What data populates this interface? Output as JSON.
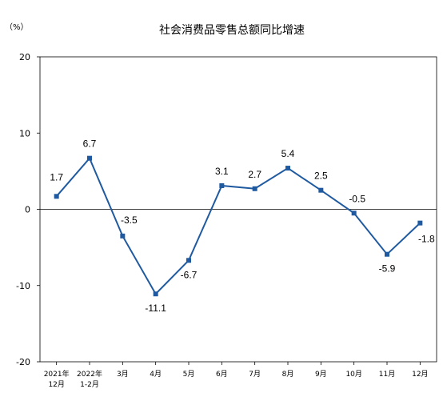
{
  "chart_data": {
    "type": "line",
    "title": "社会消费品零售总额同比增速",
    "unit_label": "（%）",
    "xlabel": "",
    "ylabel": "",
    "ylim": [
      -20,
      20
    ],
    "yticks": [
      20,
      10,
      0,
      -10,
      -20
    ],
    "categories": [
      [
        "2021年",
        "12月"
      ],
      [
        "2022年",
        "1-2月"
      ],
      [
        "3月"
      ],
      [
        "4月"
      ],
      [
        "5月"
      ],
      [
        "6月"
      ],
      [
        "7月"
      ],
      [
        "8月"
      ],
      [
        "9月"
      ],
      [
        "10月"
      ],
      [
        "11月"
      ],
      [
        "12月"
      ]
    ],
    "series": [
      {
        "color": "#1f5aa0",
        "values": [
          1.7,
          6.7,
          -3.5,
          -11.1,
          -6.7,
          3.1,
          2.7,
          5.4,
          2.5,
          -0.5,
          -5.9,
          -1.8
        ],
        "labels": [
          "1.7",
          "6.7",
          "-3.5",
          "-11.1",
          "-6.7",
          "3.1",
          "2.7",
          "5.4",
          "2.5",
          "-0.5",
          "-5.9",
          "-1.8"
        ]
      }
    ],
    "legend": "none",
    "grid": false
  }
}
